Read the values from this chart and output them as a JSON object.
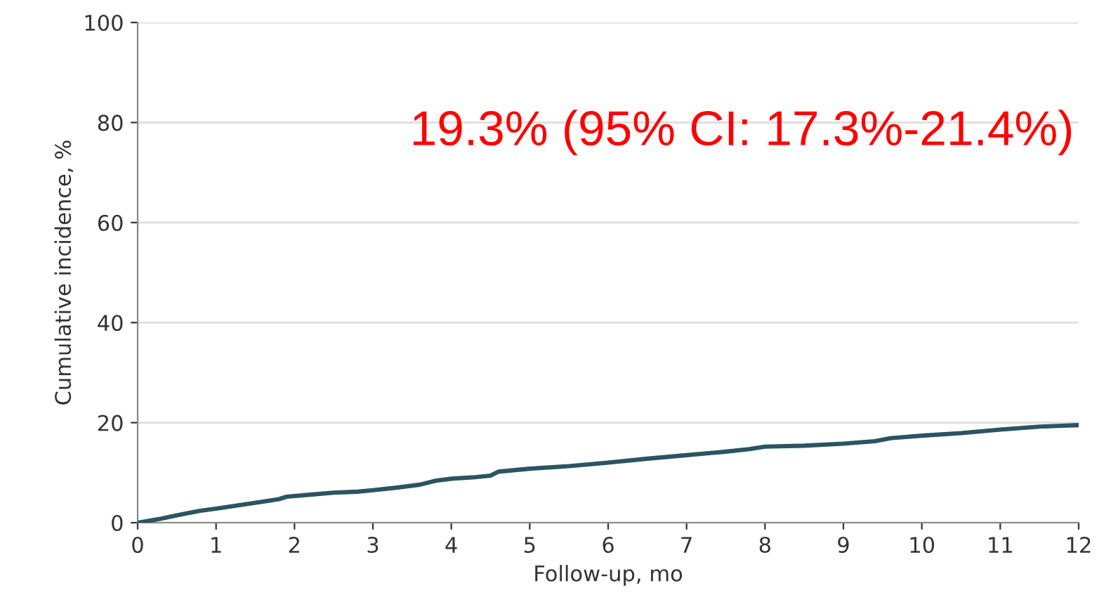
{
  "chart_data": {
    "type": "line",
    "xlabel": "Follow-up, mo",
    "ylabel": "Cumulative incidence, %",
    "x": [
      0,
      0.3,
      0.6,
      0.8,
      1,
      1.3,
      1.6,
      1.8,
      1.9,
      2.2,
      2.5,
      2.8,
      3,
      3.3,
      3.6,
      3.8,
      4,
      4.3,
      4.5,
      4.6,
      5,
      5.5,
      6,
      6.5,
      7,
      7.5,
      7.8,
      8,
      8.5,
      9,
      9.4,
      9.6,
      10,
      10.5,
      11,
      11.5,
      12
    ],
    "series": [
      {
        "color": "#2b5460",
        "values": [
          0,
          0.8,
          1.8,
          2.4,
          2.8,
          3.5,
          4.2,
          4.7,
          5.2,
          5.6,
          6.0,
          6.2,
          6.5,
          7.0,
          7.6,
          8.4,
          8.8,
          9.1,
          9.4,
          10.2,
          10.8,
          11.3,
          12.0,
          12.8,
          13.5,
          14.2,
          14.7,
          15.2,
          15.4,
          15.8,
          16.3,
          16.9,
          17.4,
          17.9,
          18.6,
          19.2,
          19.5
        ]
      }
    ],
    "xlim": [
      0,
      12
    ],
    "xticks": [
      0,
      1,
      2,
      3,
      4,
      5,
      6,
      7,
      8,
      9,
      10,
      11,
      12
    ],
    "ylim": [
      0,
      100
    ],
    "yticks": [
      0,
      20,
      40,
      60,
      80,
      100
    ],
    "grid": "y",
    "annotations": [
      "19.3% (95% CI: 17.3%-21.4%)"
    ]
  }
}
